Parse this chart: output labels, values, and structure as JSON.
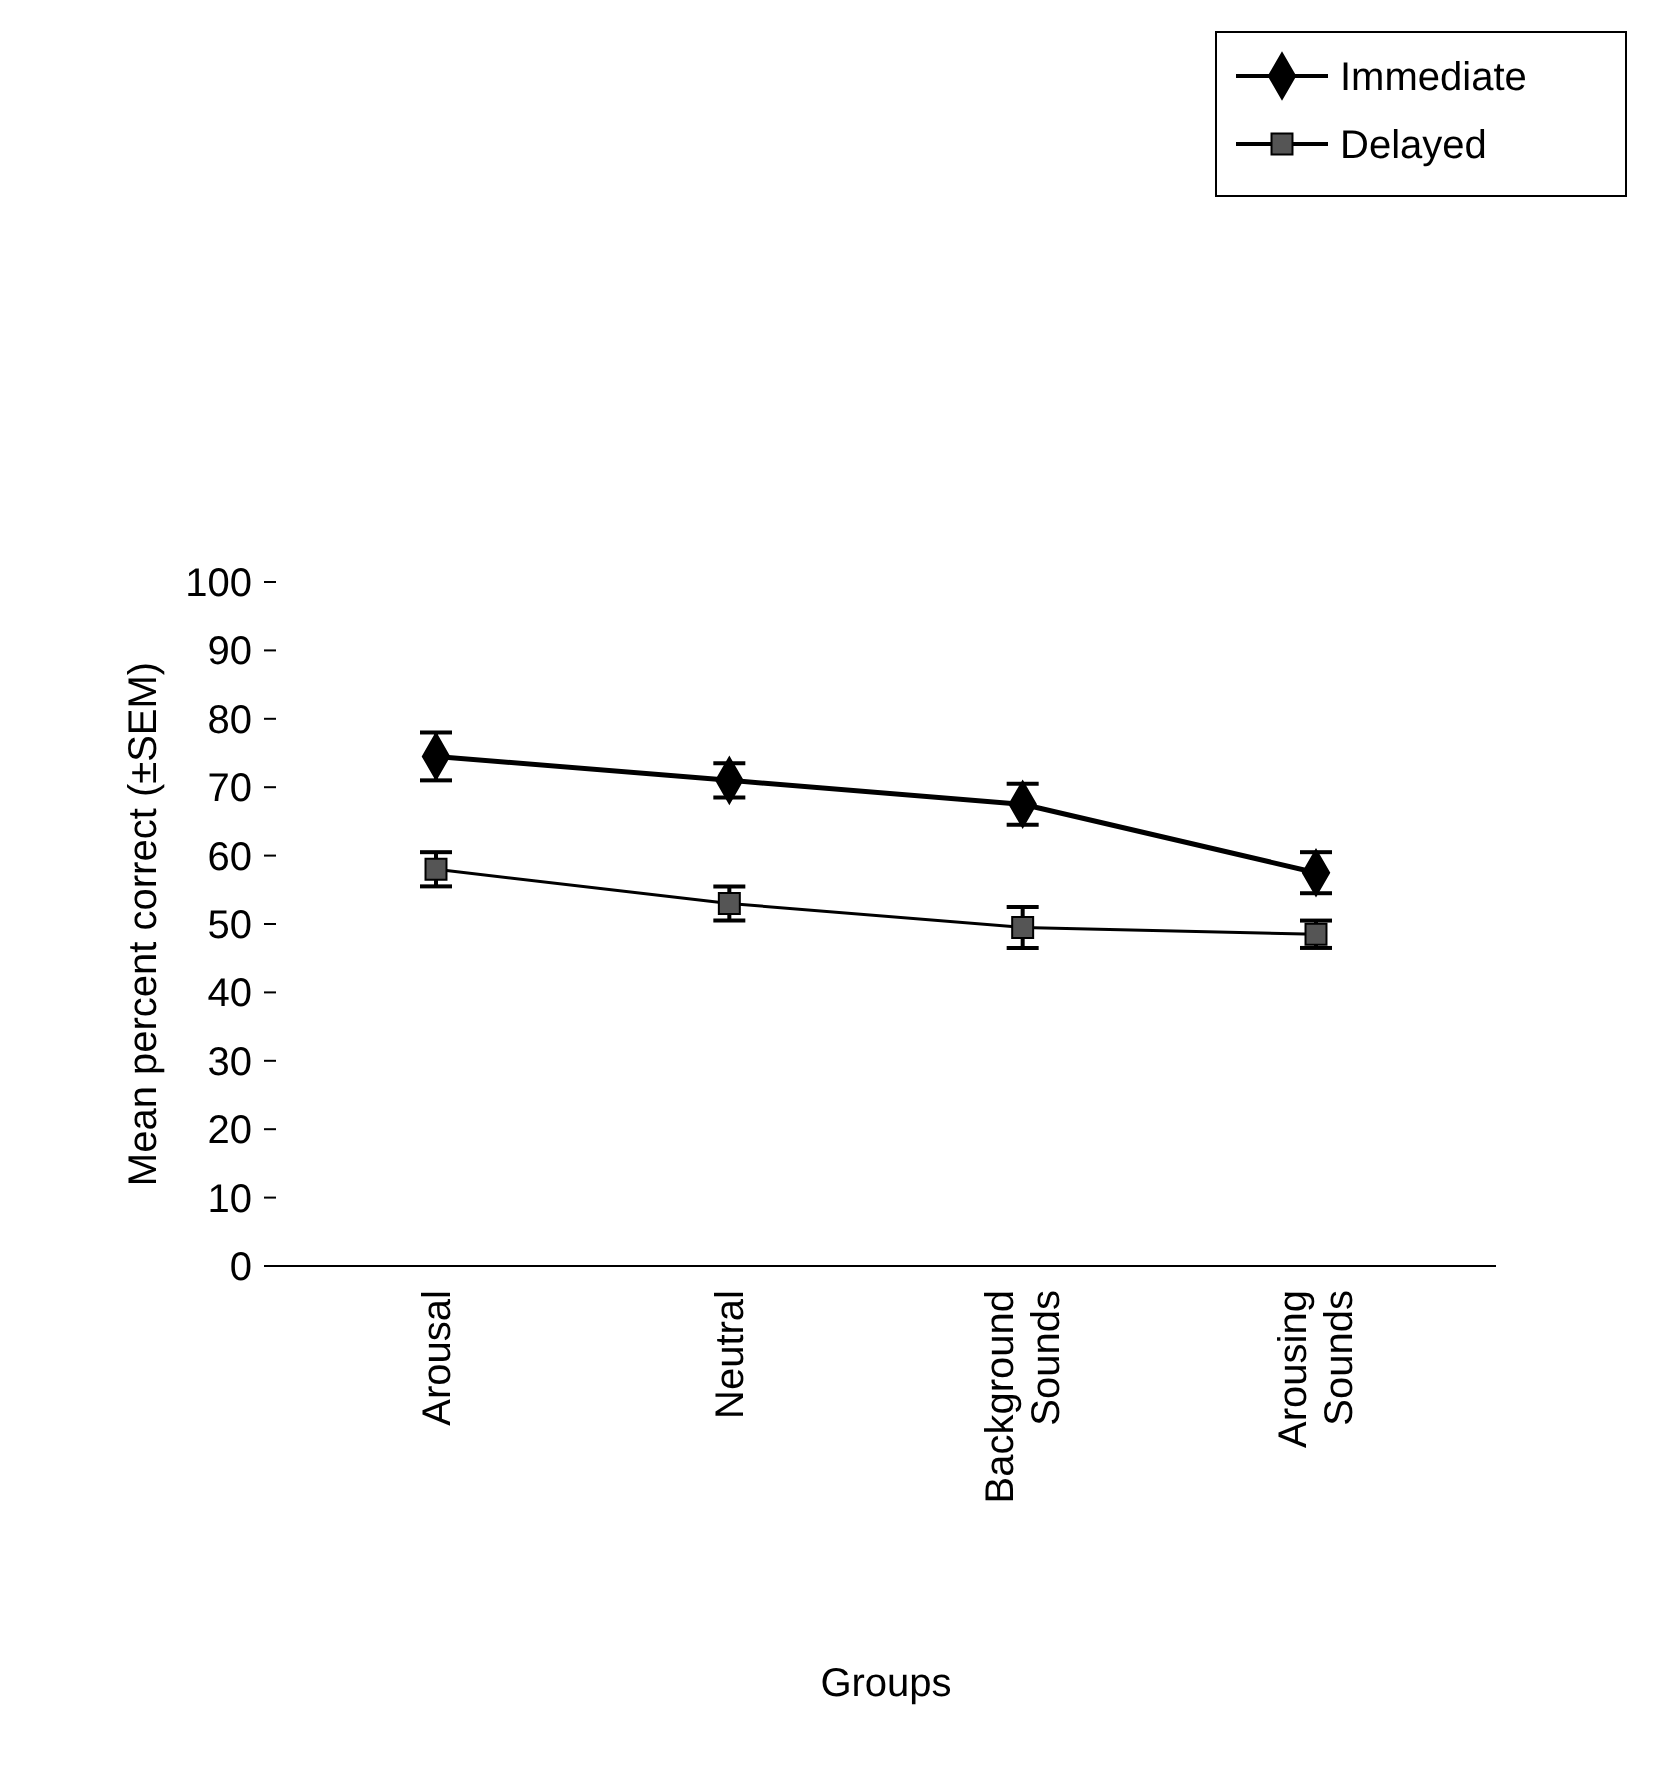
{
  "chart_data": {
    "type": "line",
    "xlabel": "Groups",
    "ylabel": "Mean percent correct (±SEM)",
    "categories": [
      "Arousal",
      "Neutral",
      "Background Sounds",
      "Arousing Sounds"
    ],
    "series": [
      {
        "name": "Immediate",
        "color": "#000000",
        "marker": "diamond",
        "values": [
          74.5,
          71,
          67.5,
          57.5
        ],
        "errors": [
          3.5,
          2.5,
          3,
          3
        ]
      },
      {
        "name": "Delayed",
        "color": "#000000",
        "marker": "square",
        "values": [
          58,
          53,
          49.5,
          48.5
        ],
        "errors": [
          2.5,
          2.5,
          3,
          2
        ]
      }
    ],
    "ylim": [
      0,
      100
    ],
    "yticks": [
      0,
      10,
      20,
      30,
      40,
      50,
      60,
      70,
      80,
      90,
      100
    ],
    "legend": "top right",
    "grid": false
  }
}
